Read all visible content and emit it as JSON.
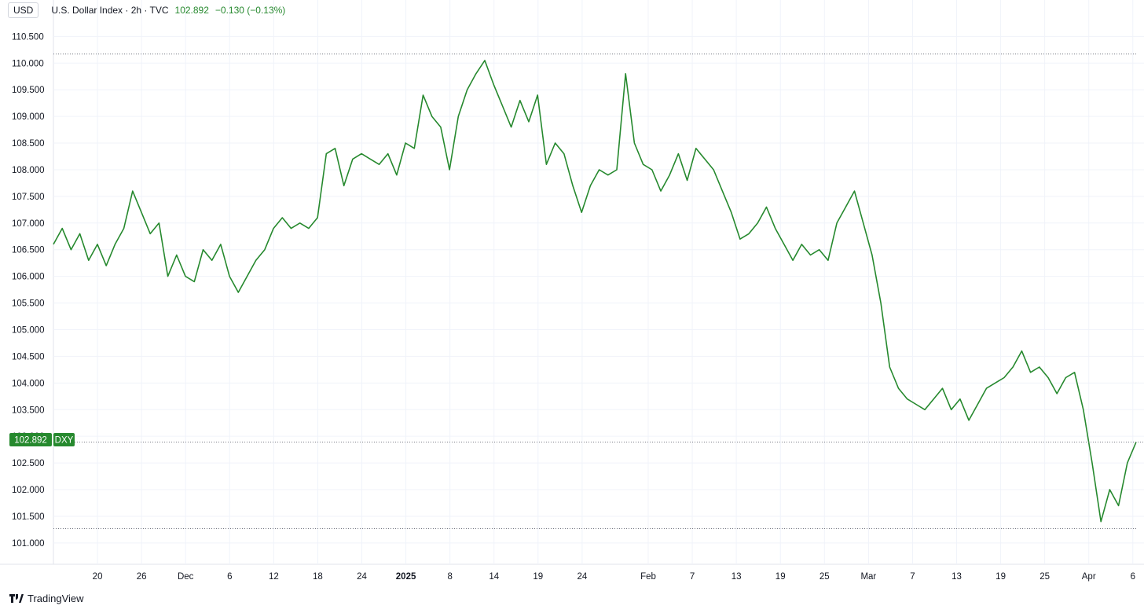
{
  "header": {
    "currency": "USD",
    "title": "U.S. Dollar Index · 2h · TVC",
    "last": "102.892",
    "change": "−0.130 (−0.13%)"
  },
  "price_tag": {
    "value": "102.892",
    "symbol": "DXY"
  },
  "branding": {
    "name": "TradingView",
    "icon": "tradingview-logo-icon"
  },
  "colors": {
    "line": "#26892e",
    "grid": "#f0f3fa",
    "text": "#131722",
    "dotted": "#787b86"
  },
  "chart_data": {
    "type": "line",
    "y_ticks": [
      "101.000",
      "101.500",
      "102.000",
      "102.500",
      "103.000",
      "103.500",
      "104.000",
      "104.500",
      "105.000",
      "105.500",
      "106.000",
      "106.500",
      "107.000",
      "107.500",
      "108.000",
      "108.500",
      "109.000",
      "109.500",
      "110.000",
      "110.500"
    ],
    "x_ticks": [
      {
        "label": "20",
        "idx": 4
      },
      {
        "label": "26",
        "idx": 8
      },
      {
        "label": "Dec",
        "idx": 12
      },
      {
        "label": "6",
        "idx": 16
      },
      {
        "label": "12",
        "idx": 20
      },
      {
        "label": "18",
        "idx": 24
      },
      {
        "label": "24",
        "idx": 28
      },
      {
        "label": "2025",
        "idx": 32,
        "bold": true
      },
      {
        "label": "8",
        "idx": 36
      },
      {
        "label": "14",
        "idx": 40
      },
      {
        "label": "19",
        "idx": 44
      },
      {
        "label": "24",
        "idx": 48
      },
      {
        "label": "Feb",
        "idx": 54
      },
      {
        "label": "7",
        "idx": 58
      },
      {
        "label": "13",
        "idx": 62
      },
      {
        "label": "19",
        "idx": 66
      },
      {
        "label": "25",
        "idx": 70
      },
      {
        "label": "Mar",
        "idx": 74
      },
      {
        "label": "7",
        "idx": 78
      },
      {
        "label": "13",
        "idx": 82
      },
      {
        "label": "19",
        "idx": 86
      },
      {
        "label": "25",
        "idx": 90
      },
      {
        "label": "Apr",
        "idx": 94
      },
      {
        "label": "6",
        "idx": 98
      }
    ],
    "x_range": [
      0,
      98.3
    ],
    "ylim": [
      100.6,
      110.8
    ],
    "reference_lines": [
      110.17,
      101.27
    ],
    "last_value": 102.892,
    "series": [
      {
        "values": [
          106.6,
          106.9,
          106.5,
          106.8,
          106.3,
          106.6,
          106.2,
          106.6,
          106.9,
          107.6,
          107.2,
          106.8,
          107.0,
          106.0,
          106.4,
          106.0,
          105.9,
          106.5,
          106.3,
          106.6,
          106.0,
          105.7,
          106.0,
          106.3,
          106.5,
          106.9,
          107.1,
          106.9,
          107.0,
          106.9,
          107.1,
          108.3,
          108.4,
          107.7,
          108.2,
          108.3,
          108.2,
          108.1,
          108.3,
          107.9,
          108.5,
          108.4,
          109.4,
          109.0,
          108.8,
          108.0,
          109.0,
          109.5,
          109.8,
          110.05,
          109.6,
          109.2,
          108.8,
          109.3,
          108.9,
          109.4,
          108.1,
          108.5,
          108.3,
          107.7,
          107.2,
          107.7,
          108.0,
          107.9,
          108.0,
          109.8,
          108.5,
          108.1,
          108.0,
          107.6,
          107.9,
          108.3,
          107.8,
          108.4,
          108.2,
          108.0,
          107.6,
          107.2,
          106.7,
          106.8,
          107.0,
          107.3,
          106.9,
          106.6,
          106.3,
          106.6,
          106.4,
          106.5,
          106.3,
          107.0,
          107.3,
          107.6,
          107.0,
          106.4,
          105.5,
          104.3,
          103.9,
          103.7,
          103.6,
          103.5,
          103.7,
          103.9,
          103.5,
          103.7,
          103.3,
          103.6,
          103.9,
          104.0,
          104.1,
          104.3,
          104.6,
          104.2,
          104.3,
          104.1,
          103.8,
          104.1,
          104.2,
          103.5,
          102.5,
          101.4,
          102.0,
          101.7,
          102.5,
          102.892
        ],
        "x": [
          0,
          0.5,
          1,
          1.5,
          2,
          2.5,
          3,
          3.5,
          4,
          4.5,
          5,
          5.5,
          6,
          6.5,
          7,
          7.5,
          8,
          8.5,
          9,
          9.5,
          10,
          10.5,
          11,
          11.5,
          12,
          12.5,
          13,
          13.5,
          14,
          14.5,
          15,
          15.5,
          16,
          16.5,
          17,
          17.5,
          18,
          18.5,
          19,
          19.5,
          20,
          20.5,
          21,
          21.5,
          22,
          22.5,
          23,
          23.5,
          24,
          24.5,
          25,
          25.5,
          26,
          26.5,
          27,
          27.5,
          28,
          28.5,
          29,
          29.5,
          30,
          30.5,
          31,
          31.5,
          32,
          32.5,
          33,
          33.5,
          34,
          34.5,
          35,
          35.5,
          36,
          36.5,
          37,
          37.5,
          38,
          38.5,
          39,
          39.5,
          40,
          40.5,
          41,
          41.5,
          42,
          42.5,
          43,
          43.5,
          44,
          44.5,
          45,
          45.5,
          46,
          46.5,
          47,
          47.5,
          48,
          48.5,
          49,
          49.5,
          50,
          50.5,
          51,
          51.5,
          52,
          52.5,
          53,
          53.5,
          54,
          54.5,
          55,
          55.5,
          56,
          56.5,
          57,
          57.5,
          58,
          58.5,
          59,
          59.5,
          60,
          60.5,
          61,
          61.5
        ]
      }
    ]
  }
}
